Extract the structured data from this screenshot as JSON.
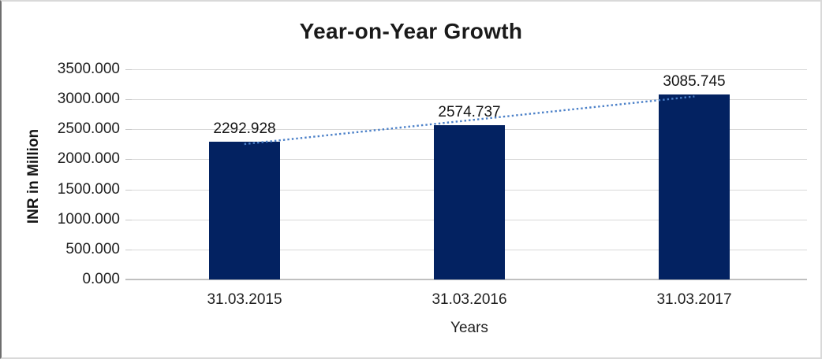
{
  "chart_data": {
    "type": "bar",
    "title": "Year-on-Year Growth",
    "categories": [
      "31.03.2015",
      "31.03.2016",
      "31.03.2017"
    ],
    "values": [
      2292.928,
      2574.737,
      3085.745
    ],
    "data_labels": [
      "2292.928",
      "2574.737",
      "3085.745"
    ],
    "xlabel": "Years",
    "ylabel": "INR in Million",
    "ylim": [
      0,
      3500
    ],
    "y_tick_step": 500,
    "y_tick_labels": [
      "3500.000",
      "3000.000",
      "2500.000",
      "2000.000",
      "1500.000",
      "1000.000",
      "500.000",
      "0.000"
    ],
    "grid": true,
    "legend_position": "none",
    "trendline": {
      "type": "linear",
      "style": "dotted"
    },
    "colors": {
      "bar": "#032261",
      "trendline": "#4b80c8",
      "gridline": "#d9d9d9",
      "axis_line": "#c0c0c0",
      "tick": "#c9c9c9",
      "text": "#1f1f1f"
    }
  }
}
